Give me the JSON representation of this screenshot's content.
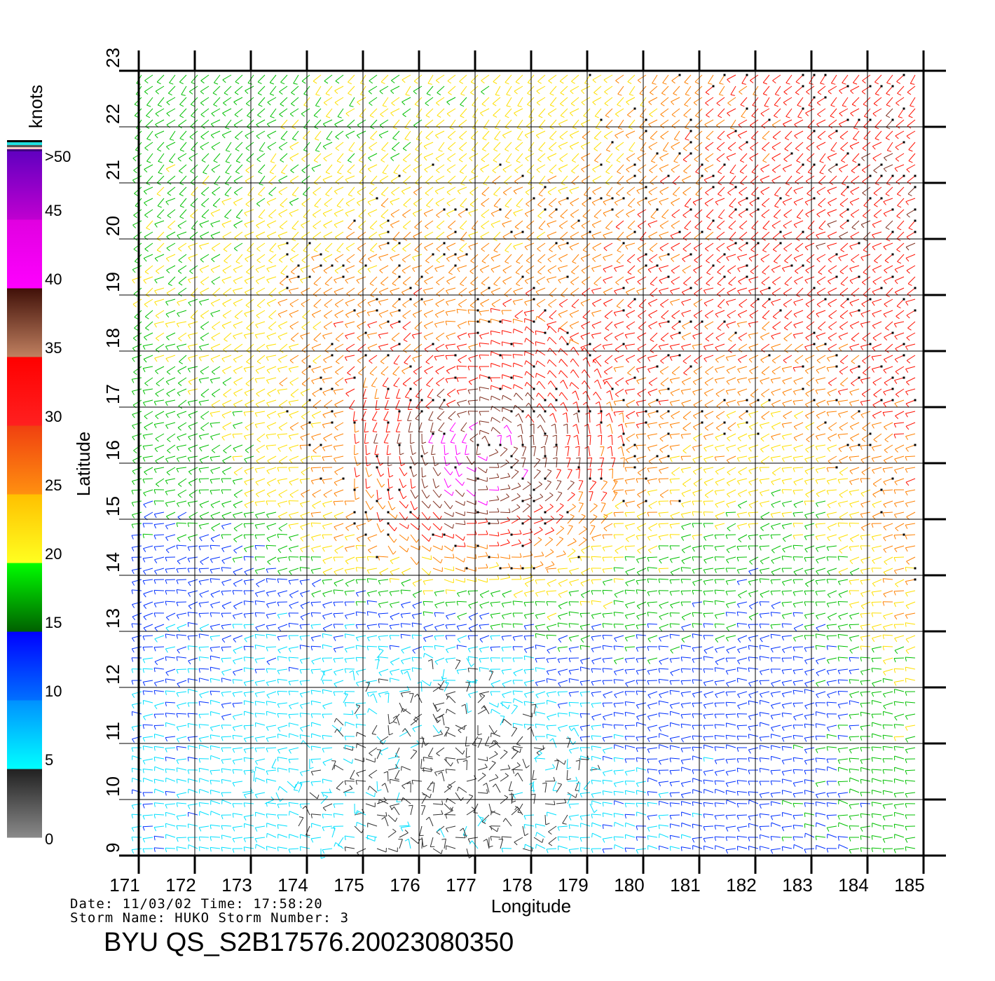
{
  "chart_data": {
    "type": "wind-barb-map",
    "xlabel": "Longitude",
    "ylabel": "Latitude",
    "xlim": [
      171,
      185
    ],
    "ylim": [
      9,
      23
    ],
    "x_ticks": [
      "171",
      "172",
      "173",
      "174",
      "175",
      "176",
      "177",
      "178",
      "179",
      "180",
      "181",
      "182",
      "183",
      "184",
      "185"
    ],
    "y_ticks": [
      "9",
      "10",
      "11",
      "12",
      "13",
      "14",
      "15",
      "16",
      "17",
      "18",
      "19",
      "20",
      "21",
      "22",
      "23"
    ],
    "grid": true,
    "colorbar": {
      "unit": "knots",
      "labels": [
        "0",
        "5",
        "10",
        "15",
        "20",
        "25",
        "30",
        "35",
        "40",
        "45",
        ">50"
      ],
      "bands": [
        {
          "min": 0,
          "max": 5,
          "color_top": "#202020",
          "color_bottom": "#8a8a8a"
        },
        {
          "min": 5,
          "max": 10,
          "color_top": "#0090ff",
          "color_bottom": "#00ffff"
        },
        {
          "min": 10,
          "max": 15,
          "color_top": "#0000ff",
          "color_bottom": "#0070ff"
        },
        {
          "min": 15,
          "max": 20,
          "color_top": "#00ff00",
          "color_bottom": "#006000"
        },
        {
          "min": 20,
          "max": 25,
          "color_top": "#ffc000",
          "color_bottom": "#ffff20"
        },
        {
          "min": 25,
          "max": 30,
          "color_top": "#f04010",
          "color_bottom": "#ff9010"
        },
        {
          "min": 30,
          "max": 35,
          "color_top": "#ff0000",
          "color_bottom": "#ff2020"
        },
        {
          "min": 35,
          "max": 40,
          "color_top": "#401008",
          "color_bottom": "#c08060"
        },
        {
          "min": 40,
          "max": 45,
          "color_top": "#e000e0",
          "color_bottom": "#ff00ff"
        },
        {
          "min": 45,
          "max": 50,
          "color_top": "#6000c0",
          "color_bottom": "#c000d0"
        }
      ]
    },
    "speed_grid_note_lat_rows": [
      22.5,
      21.5,
      20.5,
      19.5,
      18.5,
      17.5,
      16.5,
      15.5,
      14.5,
      13.5,
      12.5,
      11.5,
      10.5,
      9.5
    ],
    "speed_grid_lon_cols": [
      171.5,
      172.5,
      173.5,
      174.5,
      175.5,
      176.5,
      177.5,
      178.5,
      179.5,
      180.5,
      181.5,
      182.5,
      183.5,
      184.5
    ],
    "speed_grid_knots": [
      [
        17,
        17,
        18,
        19,
        20,
        21,
        22,
        22,
        24,
        27,
        30,
        32,
        32,
        33
      ],
      [
        18,
        18,
        19,
        21,
        22,
        22,
        23,
        23,
        25,
        28,
        31,
        32,
        33,
        34
      ],
      [
        19,
        19,
        21,
        23,
        24,
        24,
        25,
        26,
        28,
        30,
        32,
        33,
        34,
        34
      ],
      [
        20,
        21,
        24,
        26,
        27,
        27,
        27,
        28,
        30,
        31,
        32,
        33,
        33,
        34
      ],
      [
        20,
        21,
        23,
        28,
        30,
        30,
        30,
        31,
        32,
        32,
        31,
        31,
        32,
        33
      ],
      [
        18,
        20,
        23,
        28,
        31,
        33,
        34,
        33,
        32,
        30,
        28,
        27,
        29,
        32
      ],
      [
        17,
        19,
        22,
        28,
        35,
        42,
        40,
        36,
        30,
        27,
        25,
        24,
        26,
        30
      ],
      [
        17,
        18,
        21,
        26,
        32,
        40,
        40,
        35,
        28,
        25,
        23,
        21,
        22,
        28
      ],
      [
        13,
        14,
        17,
        22,
        27,
        31,
        32,
        27,
        22,
        19,
        18,
        17,
        19,
        27
      ],
      [
        12,
        12,
        12,
        13,
        14,
        16,
        17,
        20,
        18,
        17,
        16,
        15,
        18,
        25
      ],
      [
        11,
        10,
        9,
        8,
        7,
        6,
        8,
        12,
        14,
        13,
        13,
        12,
        14,
        20
      ],
      [
        10,
        9,
        8,
        7,
        4,
        3,
        4,
        8,
        11,
        12,
        12,
        12,
        14,
        19
      ],
      [
        9,
        8,
        7,
        6,
        3,
        3,
        3,
        4,
        8,
        11,
        12,
        13,
        15,
        18
      ],
      [
        9,
        8,
        7,
        6,
        4,
        4,
        4,
        6,
        9,
        11,
        12,
        13,
        15,
        18
      ]
    ]
  },
  "info": {
    "date_line": "Date: 11/03/02   Time: 17:58:20",
    "storm_line": "Storm  Name: HUKO   Storm  Number: 3",
    "title": "BYU  QS_S2B17576.20023080350"
  }
}
